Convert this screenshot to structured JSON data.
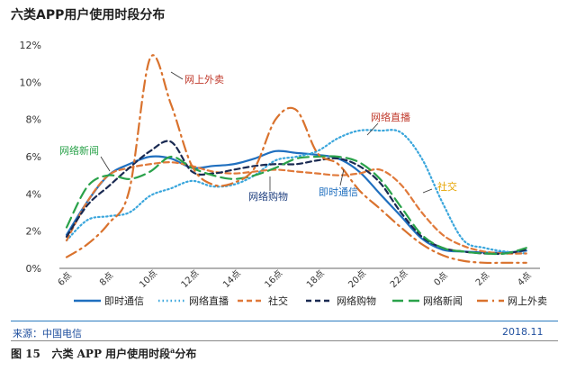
{
  "header": {
    "title": "六类APP用户使用时段分布"
  },
  "footer": {
    "source": "来源：中国电信",
    "date": "2018.11"
  },
  "caption": {
    "figure_no": "图 15",
    "text_before": "六类 APP 用户使用时段",
    "superscript": "a",
    "text_after": "分布"
  },
  "chart_data": {
    "type": "line",
    "title": "六类APP用户使用时段分布",
    "xlabel": "",
    "ylabel": "",
    "categories": [
      "6点",
      "8点",
      "10点",
      "12点",
      "14点",
      "16点",
      "18点",
      "20点",
      "22点",
      "0点",
      "2点",
      "4点"
    ],
    "y_ticks": [
      "0%",
      "2%",
      "4%",
      "6%",
      "8%",
      "10%",
      "12%"
    ],
    "ylim": [
      0,
      12
    ],
    "grid": false,
    "legend_position": "bottom",
    "series": [
      {
        "name": "即时通信",
        "color": "#1f6fbf",
        "dash": "solid",
        "x": [
          0,
          0.5,
          1,
          1.5,
          2,
          2.5,
          3,
          3.5,
          4,
          4.5,
          5,
          5.5,
          6,
          6.5,
          7,
          7.5,
          8,
          8.5,
          9,
          9.5,
          10,
          10.5,
          11
        ],
        "values": [
          1.8,
          3.6,
          5.0,
          5.6,
          6.0,
          5.9,
          5.4,
          5.5,
          5.6,
          5.9,
          6.3,
          6.2,
          6.1,
          5.9,
          5.2,
          4.0,
          2.8,
          1.6,
          1.0,
          0.9,
          0.85,
          0.85,
          0.95
        ]
      },
      {
        "name": "网络直播",
        "color": "#3aa6dc",
        "dash": "dotted",
        "x": [
          0,
          0.5,
          1,
          1.5,
          2,
          2.5,
          3,
          3.5,
          4,
          4.5,
          5,
          5.5,
          6,
          6.5,
          7,
          7.5,
          8,
          8.5,
          9,
          9.5,
          10,
          10.5,
          11
        ],
        "values": [
          1.5,
          2.6,
          2.8,
          3.0,
          3.9,
          4.3,
          4.7,
          4.4,
          4.5,
          5.0,
          5.8,
          6.0,
          6.3,
          7.0,
          7.4,
          7.4,
          7.3,
          5.9,
          3.5,
          1.5,
          1.1,
          0.9,
          0.8
        ]
      },
      {
        "name": "社交",
        "color": "#e0793a",
        "dash": "dashed",
        "x": [
          0,
          0.5,
          1,
          1.5,
          2,
          2.5,
          3,
          3.5,
          4,
          4.5,
          5,
          5.5,
          6,
          6.5,
          7,
          7.5,
          8,
          8.5,
          9,
          9.5,
          10,
          10.5,
          11
        ],
        "values": [
          1.5,
          3.6,
          5.0,
          5.4,
          5.6,
          5.7,
          5.5,
          5.2,
          5.1,
          5.2,
          5.3,
          5.2,
          5.1,
          5.0,
          5.1,
          5.3,
          4.5,
          3.0,
          1.8,
          1.2,
          0.9,
          0.8,
          0.8
        ]
      },
      {
        "name": "网络购物",
        "color": "#1a2a52",
        "dash": "dashed",
        "x": [
          0,
          0.5,
          1,
          1.5,
          2,
          2.5,
          3,
          3.5,
          4,
          4.5,
          5,
          5.5,
          6,
          6.5,
          7,
          7.5,
          8,
          8.5,
          9,
          9.5,
          10,
          10.5,
          11
        ],
        "values": [
          1.7,
          3.4,
          4.4,
          5.4,
          6.3,
          6.8,
          5.2,
          5.1,
          5.3,
          5.5,
          5.6,
          5.6,
          5.8,
          5.9,
          5.5,
          4.6,
          3.0,
          1.7,
          1.1,
          0.9,
          0.8,
          0.8,
          1.0
        ]
      },
      {
        "name": "网络新闻",
        "color": "#2aa24a",
        "dash": "longdash",
        "x": [
          0,
          0.5,
          1,
          1.5,
          2,
          2.5,
          3,
          3.5,
          4,
          4.5,
          5,
          5.5,
          6,
          6.5,
          7,
          7.5,
          8,
          8.5,
          9,
          9.5,
          10,
          10.5,
          11
        ],
        "values": [
          2.2,
          4.4,
          5.0,
          4.8,
          5.2,
          6.0,
          5.4,
          5.0,
          4.8,
          5.0,
          5.4,
          5.9,
          6.0,
          6.0,
          5.7,
          4.8,
          3.3,
          1.8,
          1.1,
          0.9,
          0.8,
          0.8,
          1.1
        ]
      },
      {
        "name": "网上外卖",
        "color": "#d9722d",
        "dash": "dashdot",
        "x": [
          0,
          0.5,
          1,
          1.5,
          2,
          2.5,
          3,
          3.5,
          4,
          4.5,
          5,
          5.5,
          6,
          6.5,
          7,
          7.5,
          8,
          8.5,
          9,
          9.5,
          10,
          10.5,
          11
        ],
        "values": [
          0.6,
          1.3,
          2.4,
          4.2,
          11.3,
          8.8,
          5.5,
          4.5,
          4.6,
          5.4,
          8.0,
          8.5,
          6.2,
          5.6,
          4.2,
          3.2,
          2.2,
          1.3,
          0.7,
          0.4,
          0.3,
          0.3,
          0.3
        ]
      }
    ],
    "annotations": [
      {
        "text": "网上外卖",
        "color": "#c0392b",
        "series": "网上外卖"
      },
      {
        "text": "网络直播",
        "color": "#c0392b",
        "series": "网络直播"
      },
      {
        "text": "网络新闻",
        "color": "#2aa24a",
        "series": "网络新闻"
      },
      {
        "text": "网络购物",
        "color": "#1f3f7f",
        "series": "网络购物"
      },
      {
        "text": "即时通信",
        "color": "#1f6fbf",
        "series": "即时通信"
      },
      {
        "text": "社交",
        "color": "#e6a400",
        "series": "社交"
      }
    ]
  }
}
